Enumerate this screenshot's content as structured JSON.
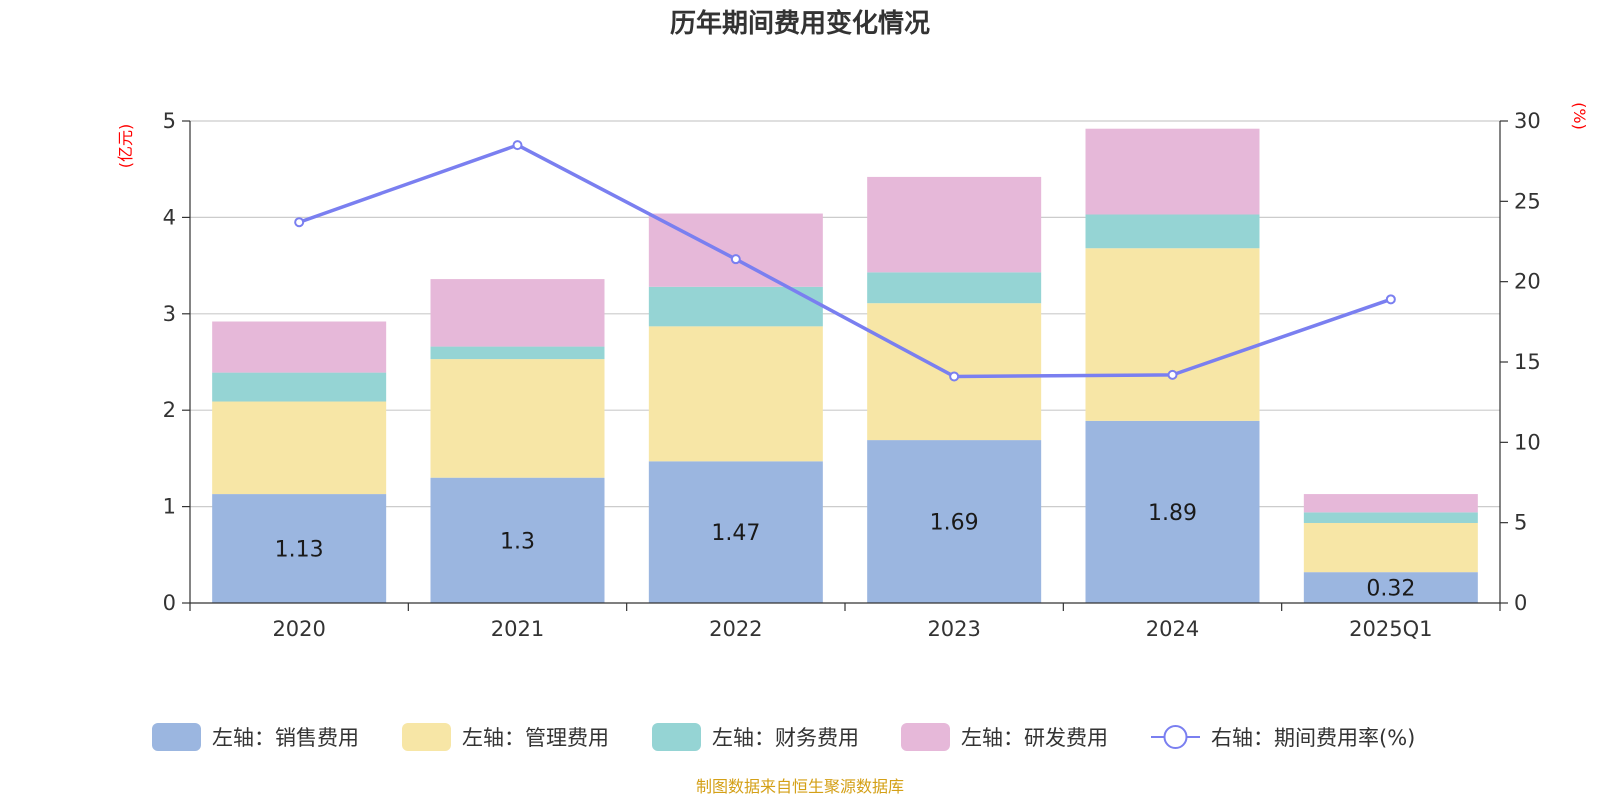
{
  "title": "历年期间费用变化情况",
  "left_axis_unit": "(亿元)",
  "right_axis_unit": "(%)",
  "source": "制图数据来自恒生聚源数据库",
  "colors": {
    "sales": "#9bb6e0",
    "admin": "#f7e6a6",
    "finance": "#95d4d4",
    "rnd": "#e6b8d9",
    "rate": "#7a7ff0"
  },
  "chart_data": {
    "type": "bar",
    "stacked": true,
    "title": "历年期间费用变化情况",
    "categories": [
      "2020",
      "2021",
      "2022",
      "2023",
      "2024",
      "2025Q1"
    ],
    "left_axis": {
      "ticks": [
        "0",
        "1",
        "2",
        "3",
        "4",
        "5"
      ],
      "ylim": [
        0,
        5
      ],
      "unit": "(亿元)"
    },
    "right_axis": {
      "ticks": [
        "0",
        "5",
        "10",
        "15",
        "20",
        "25",
        "30"
      ],
      "ylim": [
        0,
        30
      ],
      "unit": "(%)"
    },
    "grid": true,
    "legend_position": "bottom",
    "series": [
      {
        "name": "左轴：销售费用",
        "type": "bar",
        "axis": "left",
        "color": "#9bb6e0",
        "values": [
          1.13,
          1.3,
          1.47,
          1.69,
          1.89,
          0.32
        ],
        "labels": [
          "1.13",
          "1.3",
          "1.47",
          "1.69",
          "1.89",
          "0.32"
        ]
      },
      {
        "name": "左轴：管理费用",
        "type": "bar",
        "axis": "left",
        "color": "#f7e6a6",
        "values": [
          0.96,
          1.23,
          1.4,
          1.42,
          1.79,
          0.51
        ]
      },
      {
        "name": "左轴：财务费用",
        "type": "bar",
        "axis": "left",
        "color": "#95d4d4",
        "values": [
          0.3,
          0.13,
          0.41,
          0.32,
          0.35,
          0.11
        ]
      },
      {
        "name": "左轴：研发费用",
        "type": "bar",
        "axis": "left",
        "color": "#e6b8d9",
        "values": [
          0.53,
          0.7,
          0.76,
          0.99,
          0.89,
          0.19
        ]
      },
      {
        "name": "右轴：期间费用率(%)",
        "type": "line",
        "axis": "right",
        "color": "#7a7ff0",
        "values": [
          23.7,
          28.5,
          21.4,
          14.1,
          14.2,
          18.9
        ]
      }
    ]
  }
}
